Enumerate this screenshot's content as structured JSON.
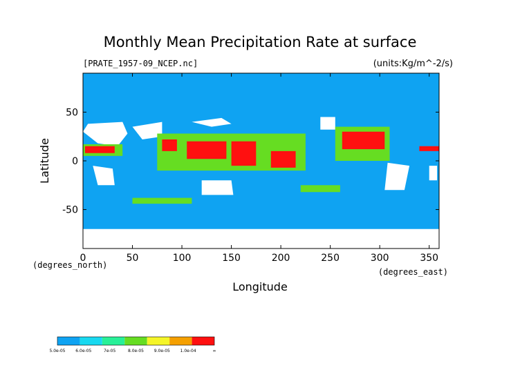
{
  "chart_data": {
    "type": "heatmap",
    "title": "Monthly Mean Precipitation Rate at surface",
    "subtitle_left": "[PRATE_1957-09_NCEP.nc]",
    "units": "(units:Kg/m^-2/s)",
    "xlabel": "Longitude",
    "ylabel": "Latitude",
    "x_note": "(degrees_east)",
    "y_note": "(degrees_north)",
    "xlim": [
      0,
      360
    ],
    "ylim": [
      -90,
      90
    ],
    "x_ticks": [
      0,
      50,
      100,
      150,
      200,
      250,
      300,
      350
    ],
    "y_ticks": [
      50,
      0,
      -50
    ],
    "background_color": "#0fa3f2",
    "legend": {
      "labels": [
        "5.0e-05",
        "6.0e-05",
        "7e-05",
        "8.0e-05",
        "9.0e-05",
        "1.0e-04",
        "∞"
      ],
      "colors": [
        "#0fa3f2",
        "#18d9f0",
        "#28f098",
        "#66dd22",
        "#f5f528",
        "#f5a000",
        "#ff1010"
      ]
    },
    "regions": [
      {
        "label": "no-data",
        "color": "#ffffff",
        "points": [
          [
            0,
            -70
          ],
          [
            360,
            -70
          ],
          [
            360,
            -90
          ],
          [
            0,
            -90
          ]
        ]
      },
      {
        "label": "no-data",
        "color": "#ffffff",
        "points": [
          [
            5,
            38
          ],
          [
            40,
            40
          ],
          [
            45,
            28
          ],
          [
            35,
            15
          ],
          [
            15,
            18
          ],
          [
            0,
            30
          ]
        ]
      },
      {
        "label": "no-data",
        "color": "#ffffff",
        "points": [
          [
            50,
            35
          ],
          [
            80,
            40
          ],
          [
            80,
            25
          ],
          [
            60,
            22
          ]
        ]
      },
      {
        "label": "no-data",
        "color": "#ffffff",
        "points": [
          [
            110,
            40
          ],
          [
            140,
            44
          ],
          [
            150,
            38
          ],
          [
            130,
            35
          ]
        ]
      },
      {
        "label": "no-data",
        "color": "#ffffff",
        "points": [
          [
            120,
            -20
          ],
          [
            150,
            -20
          ],
          [
            152,
            -35
          ],
          [
            120,
            -35
          ]
        ]
      },
      {
        "label": "no-data",
        "color": "#ffffff",
        "points": [
          [
            240,
            45
          ],
          [
            255,
            45
          ],
          [
            255,
            32
          ],
          [
            240,
            32
          ]
        ]
      },
      {
        "label": "no-data",
        "color": "#ffffff",
        "points": [
          [
            308,
            -2
          ],
          [
            330,
            -5
          ],
          [
            325,
            -30
          ],
          [
            305,
            -30
          ]
        ]
      },
      {
        "label": "no-data",
        "color": "#ffffff",
        "points": [
          [
            10,
            -5
          ],
          [
            30,
            -8
          ],
          [
            32,
            -25
          ],
          [
            15,
            -25
          ]
        ]
      },
      {
        "label": "no-data",
        "color": "#ffffff",
        "points": [
          [
            350,
            -5
          ],
          [
            358,
            -5
          ],
          [
            358,
            -20
          ],
          [
            350,
            -20
          ]
        ]
      },
      {
        "label": ">=8e-05",
        "color": "#66dd22",
        "points": [
          [
            0,
            17
          ],
          [
            40,
            17
          ],
          [
            40,
            5
          ],
          [
            0,
            5
          ]
        ]
      },
      {
        "label": ">=1e-04",
        "color": "#ff1010",
        "points": [
          [
            2,
            15
          ],
          [
            32,
            15
          ],
          [
            32,
            8
          ],
          [
            2,
            8
          ]
        ]
      },
      {
        "label": ">=8e-05",
        "color": "#66dd22",
        "points": [
          [
            75,
            28
          ],
          [
            225,
            28
          ],
          [
            225,
            -10
          ],
          [
            75,
            -10
          ]
        ]
      },
      {
        "label": ">=1e-04",
        "color": "#ff1010",
        "points": [
          [
            80,
            22
          ],
          [
            95,
            22
          ],
          [
            95,
            10
          ],
          [
            80,
            10
          ]
        ]
      },
      {
        "label": ">=1e-04",
        "color": "#ff1010",
        "points": [
          [
            105,
            20
          ],
          [
            145,
            20
          ],
          [
            145,
            2
          ],
          [
            105,
            2
          ]
        ]
      },
      {
        "label": ">=1e-04",
        "color": "#ff1010",
        "points": [
          [
            150,
            20
          ],
          [
            175,
            20
          ],
          [
            175,
            -5
          ],
          [
            150,
            -5
          ]
        ]
      },
      {
        "label": ">=1e-04",
        "color": "#ff1010",
        "points": [
          [
            190,
            10
          ],
          [
            215,
            10
          ],
          [
            215,
            -7
          ],
          [
            190,
            -7
          ]
        ]
      },
      {
        "label": ">=8e-05",
        "color": "#66dd22",
        "points": [
          [
            255,
            35
          ],
          [
            310,
            35
          ],
          [
            310,
            0
          ],
          [
            255,
            0
          ]
        ]
      },
      {
        "label": ">=1e-04",
        "color": "#ff1010",
        "points": [
          [
            262,
            30
          ],
          [
            305,
            30
          ],
          [
            305,
            12
          ],
          [
            262,
            12
          ]
        ]
      },
      {
        "label": ">=8e-05",
        "color": "#66dd22",
        "points": [
          [
            220,
            -25
          ],
          [
            260,
            -25
          ],
          [
            260,
            -32
          ],
          [
            220,
            -32
          ]
        ]
      },
      {
        "label": ">=8e-05",
        "color": "#66dd22",
        "points": [
          [
            50,
            -38
          ],
          [
            110,
            -38
          ],
          [
            110,
            -44
          ],
          [
            50,
            -44
          ]
        ]
      },
      {
        "label": ">=1e-04",
        "color": "#ff1010",
        "points": [
          [
            340,
            15
          ],
          [
            360,
            15
          ],
          [
            360,
            10
          ],
          [
            340,
            10
          ]
        ]
      }
    ]
  }
}
